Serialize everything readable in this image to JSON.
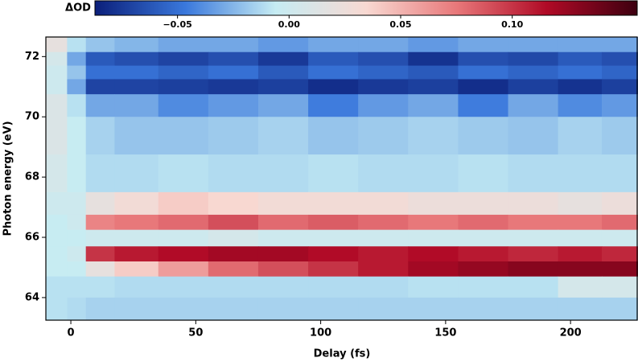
{
  "chart_data": {
    "type": "heatmap",
    "xlabel": "Delay (fs)",
    "ylabel": "Photon energy (eV)",
    "xlim": [
      -10,
      227
    ],
    "ylim": [
      63.25,
      72.65
    ],
    "xticks": [
      0,
      50,
      100,
      150,
      200
    ],
    "yticks": [
      64,
      66,
      68,
      70,
      72
    ],
    "x": [
      -5,
      2,
      10,
      25,
      45,
      65,
      85,
      105,
      125,
      145,
      165,
      185,
      205,
      220
    ],
    "y": [
      72.4,
      71.9,
      71.5,
      71.0,
      70.5,
      69.5,
      68.0,
      67.0,
      66.5,
      66.0,
      65.4,
      65.0,
      64.4,
      63.6
    ],
    "z": [
      [
        0.02,
        -0.01,
        -0.02,
        -0.025,
        -0.03,
        -0.03,
        -0.035,
        -0.03,
        -0.03,
        -0.035,
        -0.03,
        -0.03,
        -0.03,
        -0.03
      ],
      [
        0.005,
        -0.03,
        -0.06,
        -0.065,
        -0.07,
        -0.065,
        -0.075,
        -0.06,
        -0.065,
        -0.078,
        -0.065,
        -0.068,
        -0.06,
        -0.065
      ],
      [
        0.0,
        -0.02,
        -0.05,
        -0.05,
        -0.055,
        -0.05,
        -0.06,
        -0.05,
        -0.055,
        -0.06,
        -0.05,
        -0.055,
        -0.05,
        -0.055
      ],
      [
        0.0,
        -0.03,
        -0.07,
        -0.07,
        -0.072,
        -0.075,
        -0.072,
        -0.08,
        -0.075,
        -0.072,
        -0.08,
        -0.072,
        -0.078,
        -0.072
      ],
      [
        0.01,
        -0.01,
        -0.03,
        -0.03,
        -0.04,
        -0.035,
        -0.03,
        -0.045,
        -0.035,
        -0.03,
        -0.045,
        -0.03,
        -0.04,
        -0.035
      ],
      [
        0.01,
        -0.005,
        -0.015,
        -0.02,
        -0.02,
        -0.018,
        -0.015,
        -0.02,
        -0.018,
        -0.015,
        -0.018,
        -0.02,
        -0.015,
        -0.018
      ],
      [
        0.005,
        -0.005,
        -0.012,
        -0.012,
        -0.01,
        -0.012,
        -0.012,
        -0.01,
        -0.012,
        -0.012,
        -0.01,
        -0.012,
        -0.012,
        -0.012
      ],
      [
        0.0,
        0.0,
        0.02,
        0.03,
        0.04,
        0.035,
        0.03,
        0.03,
        0.03,
        0.025,
        0.025,
        0.025,
        0.02,
        0.025
      ],
      [
        -0.005,
        0.0,
        0.07,
        0.075,
        0.08,
        0.09,
        0.08,
        0.085,
        0.08,
        0.075,
        0.08,
        0.075,
        0.075,
        0.08
      ],
      [
        -0.005,
        -0.005,
        0.0,
        0.0,
        0.0,
        0.005,
        0.0,
        0.0,
        0.0,
        0.0,
        0.0,
        0.0,
        0.0,
        0.0
      ],
      [
        -0.005,
        0.0,
        0.1,
        0.11,
        0.115,
        0.12,
        0.12,
        0.115,
        0.11,
        0.115,
        0.11,
        0.105,
        0.11,
        0.105
      ],
      [
        -0.005,
        -0.005,
        0.02,
        0.04,
        0.06,
        0.08,
        0.09,
        0.1,
        0.11,
        0.12,
        0.125,
        0.13,
        0.13,
        0.13
      ],
      [
        -0.01,
        -0.01,
        -0.01,
        -0.012,
        -0.012,
        -0.012,
        -0.012,
        -0.012,
        -0.012,
        -0.01,
        -0.01,
        -0.01,
        0.005,
        0.005
      ],
      [
        -0.01,
        -0.012,
        -0.015,
        -0.015,
        -0.015,
        -0.015,
        -0.015,
        -0.015,
        -0.015,
        -0.015,
        -0.015,
        -0.015,
        -0.015,
        -0.015
      ]
    ],
    "colorbar": {
      "label": "ΔOD",
      "zlim": [
        -0.087,
        0.156
      ],
      "zticks": [
        {
          "value": -0.05,
          "label": "−0.05"
        },
        {
          "value": 0,
          "label": "0.00"
        },
        {
          "value": 0.05,
          "label": "0.05"
        },
        {
          "value": 0.1,
          "label": "0.10"
        }
      ],
      "colors": [
        "#0b1f7a",
        "#3a78dc",
        "#c6ecf3",
        "#f8d9d2",
        "#e8787a",
        "#b00a26",
        "#3d0010"
      ]
    }
  }
}
